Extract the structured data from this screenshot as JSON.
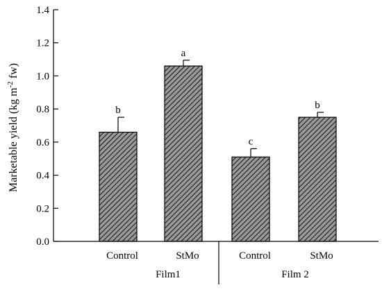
{
  "chart_data": {
    "type": "bar",
    "title": "",
    "xlabel": "",
    "ylabel_main": "Marketable yield (kg m",
    "ylabel_sup": "-2",
    "ylabel_tail": " fw)",
    "ylim": [
      0,
      1.4
    ],
    "yticks": [
      "0.0",
      "0.2",
      "0.4",
      "0.6",
      "0.8",
      "1.0",
      "1.2",
      "1.4"
    ],
    "grid": false,
    "colors": {
      "bar_fill": "#9a9a9a",
      "bar_hatch": "#1a1a1a",
      "axis": "#000000"
    },
    "groups": [
      {
        "label": "Film1",
        "bars": [
          {
            "category": "Control",
            "value": 0.66,
            "error": 0.09,
            "significance": "b"
          },
          {
            "category": "StMo",
            "value": 1.06,
            "error": 0.035,
            "significance": "a"
          }
        ]
      },
      {
        "label": "Film 2",
        "bars": [
          {
            "category": "Control",
            "value": 0.51,
            "error": 0.05,
            "significance": "c"
          },
          {
            "category": "StMo",
            "value": 0.75,
            "error": 0.03,
            "significance": "b"
          }
        ]
      }
    ]
  }
}
